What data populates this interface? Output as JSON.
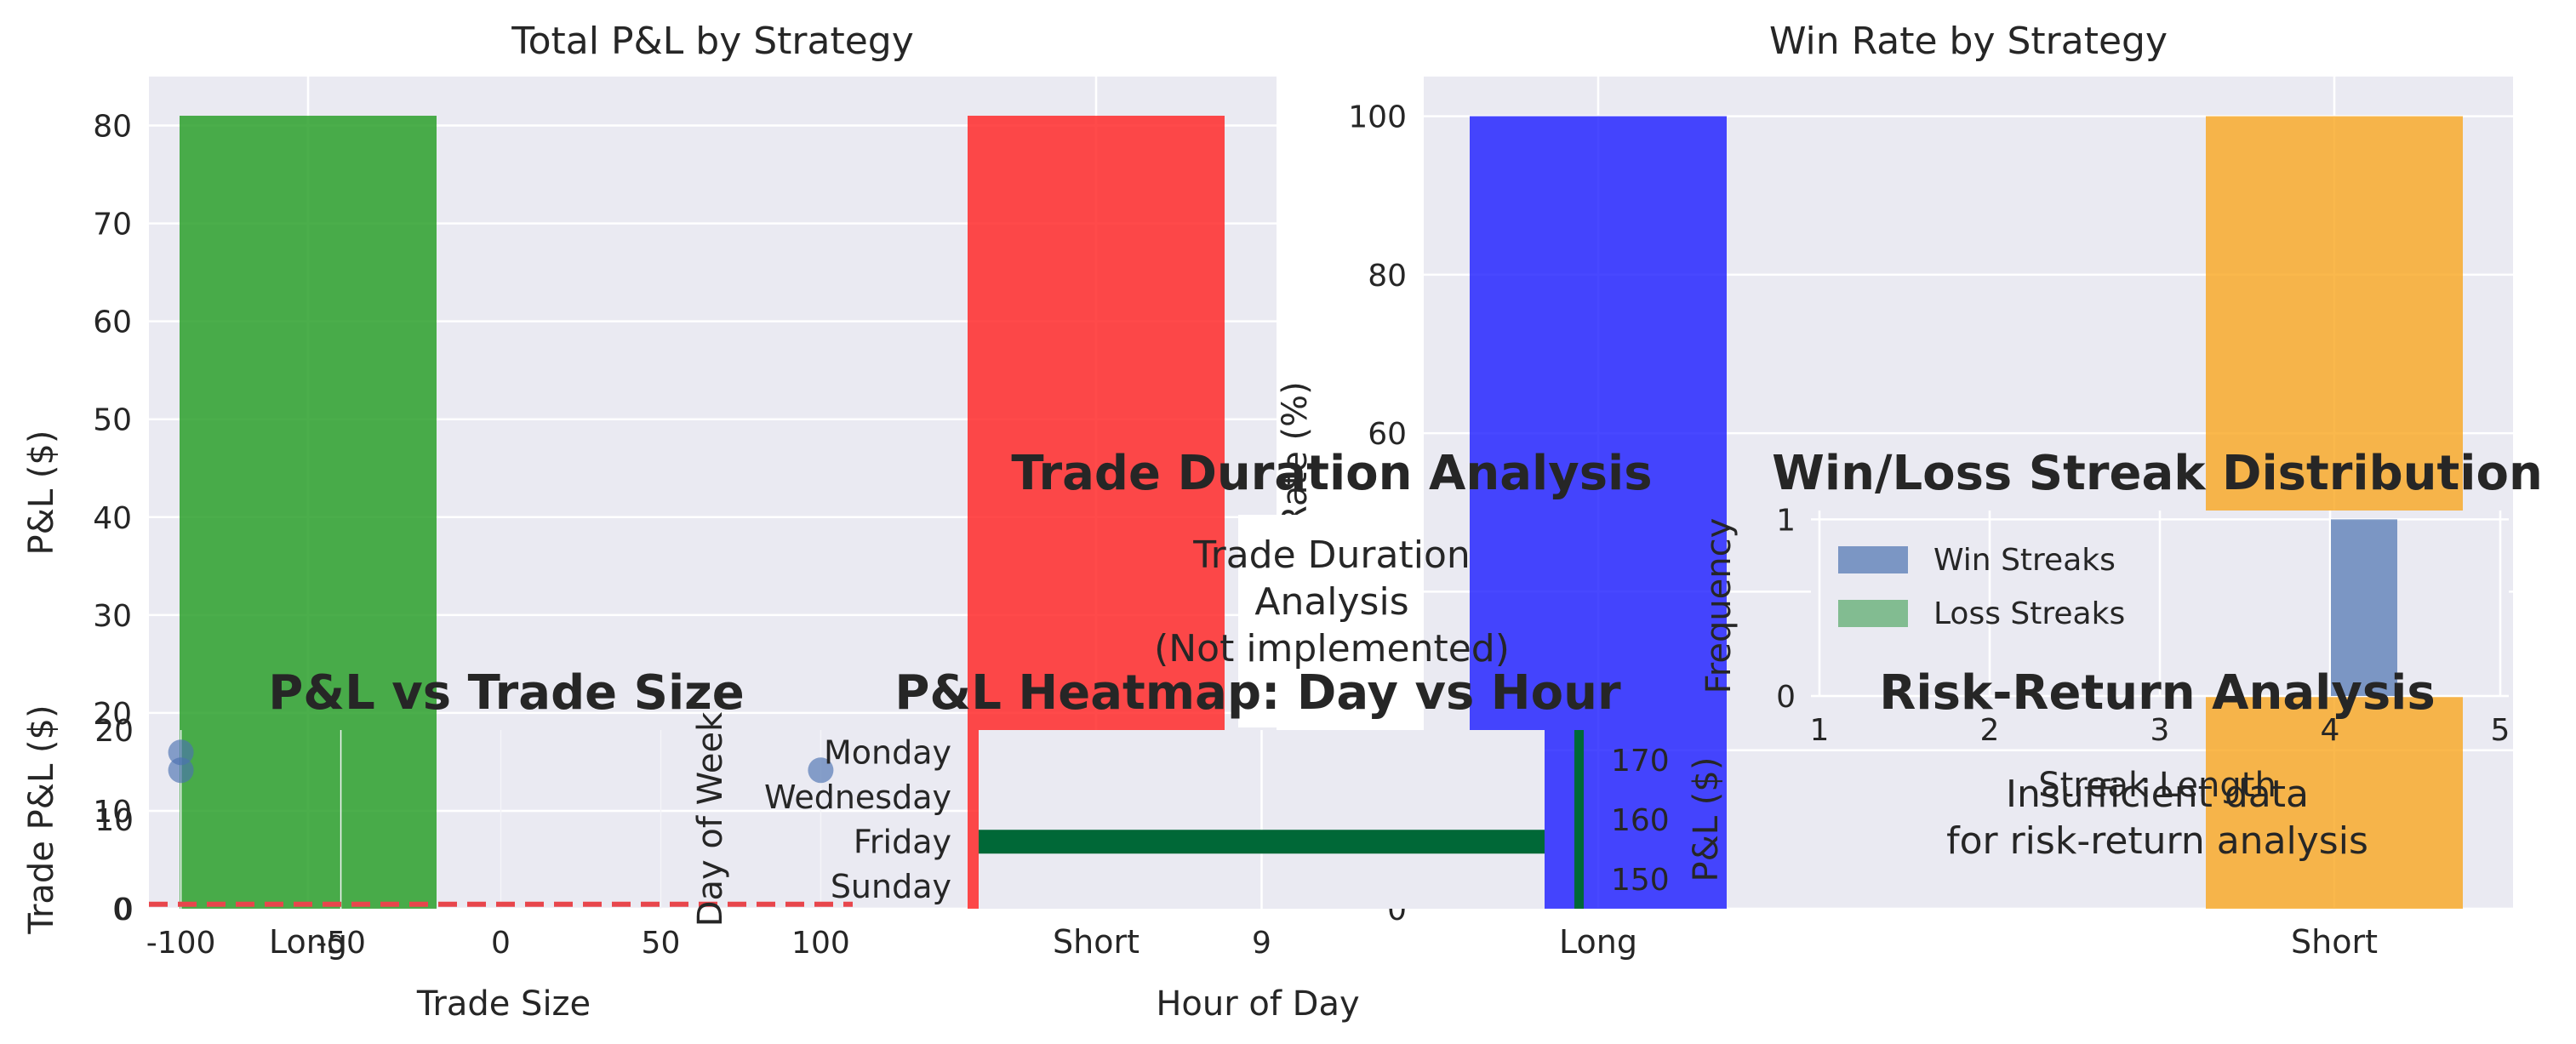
{
  "chart_data": [
    {
      "id": "pnl_by_strategy",
      "type": "bar",
      "title": "Total P&L by Strategy",
      "xlabel": "",
      "ylabel": "P&L ($)",
      "categories": [
        "Long",
        "Short"
      ],
      "values": [
        81,
        81
      ],
      "ylim": [
        0,
        85
      ],
      "yticks": [
        0,
        10,
        20,
        30,
        40,
        50,
        60,
        70,
        80
      ],
      "colors": [
        "#2ca02c",
        "#ff2a2a"
      ],
      "grid": true
    },
    {
      "id": "win_rate_by_strategy",
      "type": "bar",
      "title": "Win Rate by Strategy",
      "xlabel": "",
      "ylabel": "Win Rate (%)",
      "categories": [
        "Long",
        "Short"
      ],
      "values": [
        100,
        100
      ],
      "ylim": [
        0,
        105
      ],
      "yticks": [
        0,
        20,
        40,
        60,
        80,
        100
      ],
      "colors": [
        "#2020ff",
        "#f9a825"
      ],
      "grid": true
    },
    {
      "id": "trade_duration",
      "type": "placeholder",
      "title": "Trade Duration Analysis",
      "message": [
        "Trade Duration",
        "Analysis",
        "(Not implemented)"
      ]
    },
    {
      "id": "streak_distribution",
      "type": "bar",
      "title": "Win/Loss Streak Distribution",
      "xlabel": "Streak Length",
      "ylabel": "Frequency",
      "xlim": [
        0.95,
        5.05
      ],
      "xticks": [
        1,
        2,
        3,
        4,
        5
      ],
      "ylim": [
        0,
        1.05
      ],
      "yticks": [
        0,
        1
      ],
      "series": [
        {
          "name": "Win Streaks",
          "color": "#4c72b0",
          "bars": [
            {
              "x": 4.2,
              "value": 1
            }
          ]
        },
        {
          "name": "Loss Streaks",
          "color": "#55a868",
          "bars": []
        }
      ],
      "legend": "upper-left",
      "grid": true
    },
    {
      "id": "pnl_vs_size",
      "type": "scatter",
      "title": "P&L vs Trade Size",
      "xlabel": "Trade Size",
      "ylabel": "Trade P&L ($)",
      "xlim": [
        -110,
        110
      ],
      "xticks": [
        -100,
        -50,
        0,
        50,
        100
      ],
      "ylim": [
        0,
        20
      ],
      "yticks": [
        0,
        10,
        20
      ],
      "points": [
        {
          "x": -100,
          "y": 17.5
        },
        {
          "x": -100,
          "y": 15.5
        },
        {
          "x": 100,
          "y": 15.5
        }
      ],
      "point_color": "#4c72b0",
      "zero_line": 0.5,
      "zero_line_color": "#e8464c",
      "grid": true
    },
    {
      "id": "pnl_heatmap",
      "type": "heatmap",
      "title": "P&L Heatmap: Day vs Hour",
      "xlabel": "Hour of Day",
      "ylabel": "Day of Week",
      "x_categories": [
        "9"
      ],
      "y_categories": [
        "Monday",
        "Wednesday",
        "Friday",
        "Sunday"
      ],
      "cells": [
        {
          "day": "Friday",
          "hour": "9",
          "value": 162
        }
      ],
      "colorbar_label": "P&L ($)",
      "colorbar_ticks": [
        150,
        160,
        170
      ],
      "cell_color": "#006837"
    },
    {
      "id": "risk_return",
      "type": "placeholder",
      "title": "Risk-Return Analysis",
      "message": [
        "Insufficient data",
        "for risk-return analysis"
      ]
    }
  ]
}
